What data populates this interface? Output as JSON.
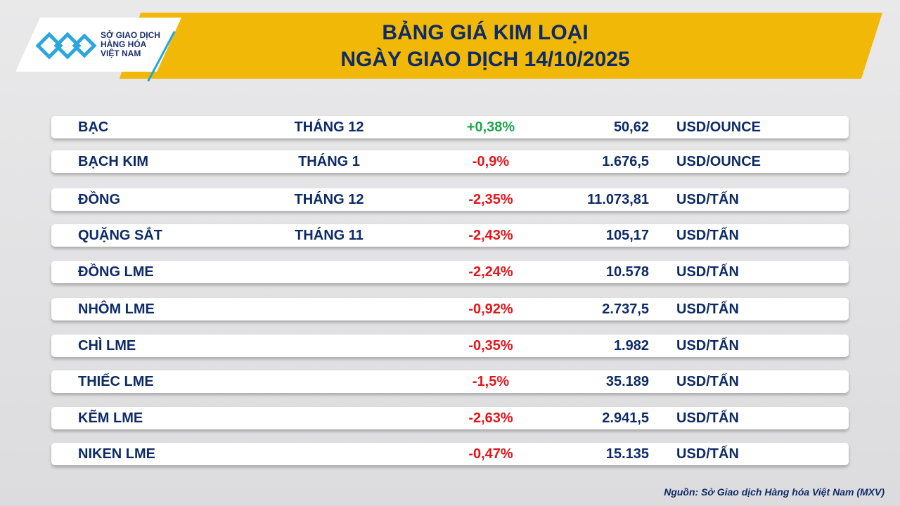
{
  "header": {
    "title_line1": "BẢNG GIÁ KIM LOẠI",
    "title_line2": "NGÀY GIAO DỊCH 14/10/2025"
  },
  "logo": {
    "line1": "SỞ GIAO DỊCH",
    "line2": "HÀNG HÓA",
    "line3": "VIỆT NAM"
  },
  "colors": {
    "banner": "#f2b807",
    "text": "#0d2b66",
    "up": "#1fa64a",
    "down": "#e4161b"
  },
  "rows": [
    {
      "name": "BẠC",
      "month": "THÁNG 12",
      "change": "+0,38%",
      "price": "50,62",
      "unit": "USD/OUNCE"
    },
    {
      "name": "BẠCH KIM",
      "month": "THÁNG 1",
      "change": "-0,9%",
      "price": "1.676,5",
      "unit": "USD/OUNCE"
    },
    {
      "name": "ĐỒNG",
      "month": "THÁNG 12",
      "change": "-2,35%",
      "price": "11.073,81",
      "unit": "USD/TẤN"
    },
    {
      "name": "QUẶNG SẮT",
      "month": "THÁNG 11",
      "change": "-2,43%",
      "price": "105,17",
      "unit": "USD/TẤN"
    },
    {
      "name": "ĐỒNG LME",
      "month": "",
      "change": "-2,24%",
      "price": "10.578",
      "unit": "USD/TẤN"
    },
    {
      "name": "NHÔM LME",
      "month": "",
      "change": "-0,92%",
      "price": "2.737,5",
      "unit": "USD/TẤN"
    },
    {
      "name": "CHÌ LME",
      "month": "",
      "change": "-0,35%",
      "price": "1.982",
      "unit": "USD/TẤN"
    },
    {
      "name": "THIẾC LME",
      "month": "",
      "change": "-1,5%",
      "price": "35.189",
      "unit": "USD/TẤN"
    },
    {
      "name": "KẼM LME",
      "month": "",
      "change": "-2,63%",
      "price": "2.941,5",
      "unit": "USD/TẤN"
    },
    {
      "name": "NIKEN LME",
      "month": "",
      "change": "-0,47%",
      "price": "15.135",
      "unit": "USD/TẤN"
    }
  ],
  "source": "Nguồn: Sở Giao dịch Hàng hóa Việt Nam (MXV)"
}
